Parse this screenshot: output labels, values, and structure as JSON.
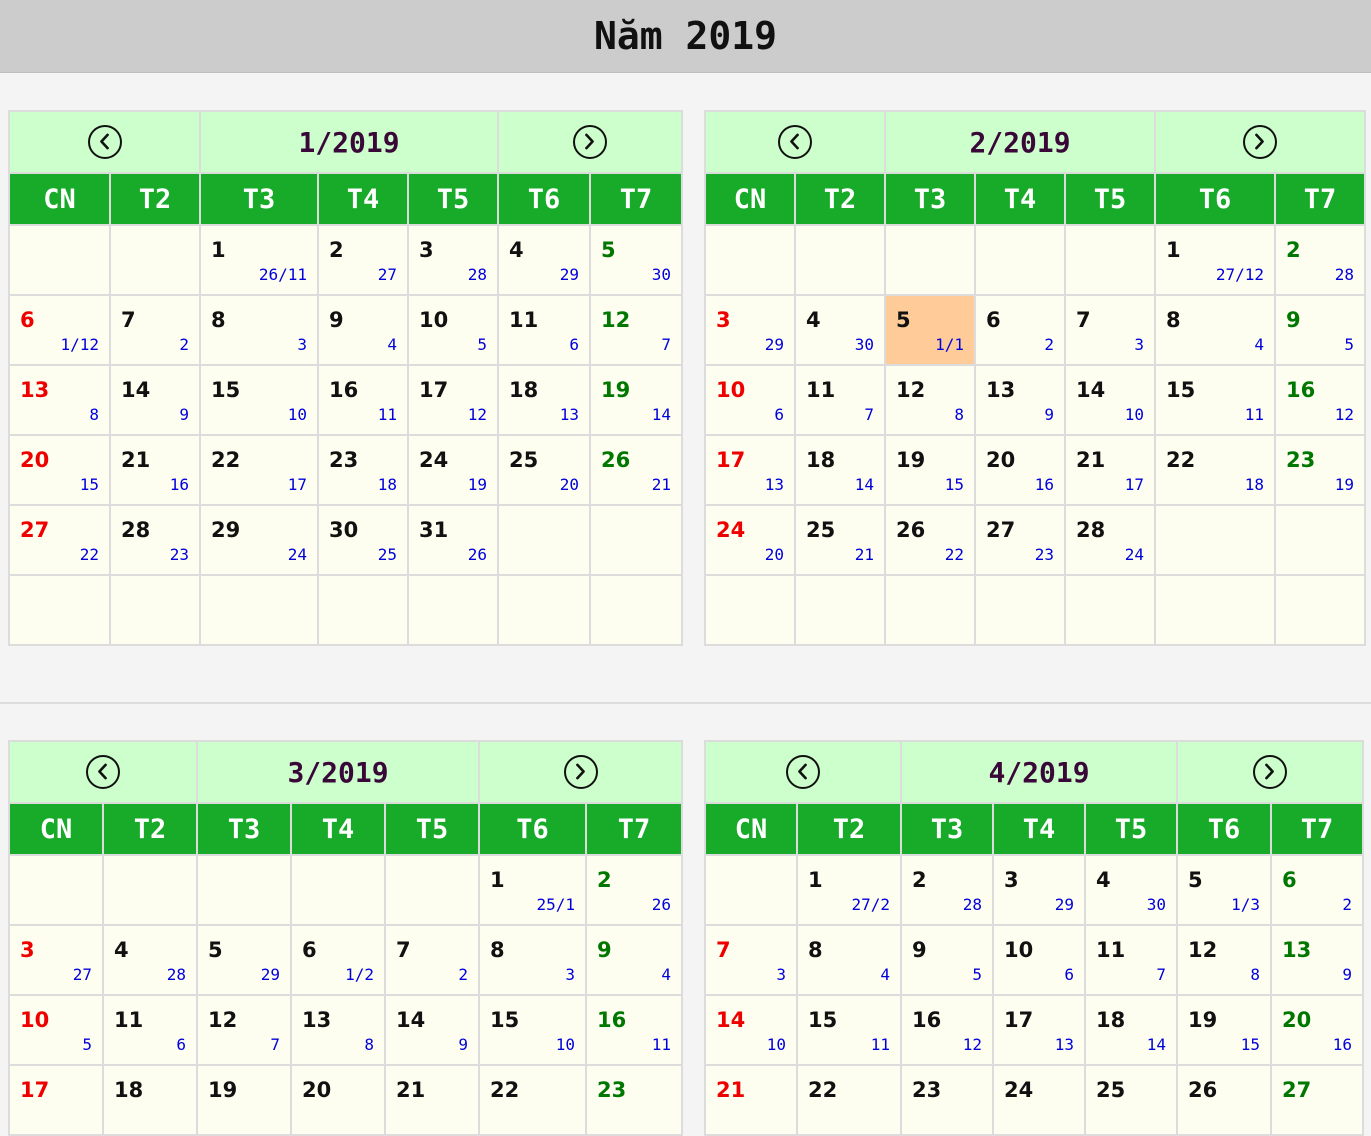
{
  "year_title": "Năm 2019",
  "colors": {
    "header_bar": "#cccccc",
    "nav_row": "#ccffcc",
    "weekday_header": "#17ab29",
    "cell_bg": "#fefef0",
    "today": "#ffcc99",
    "sunday_text": "#ee0000",
    "saturday_text": "#007700",
    "lunar_text": "#0000dd"
  },
  "icons": {
    "prev": "chevron-left-circle-icon",
    "next": "chevron-right-circle-icon"
  },
  "weekdays": [
    "CN",
    "T2",
    "T3",
    "T4",
    "T5",
    "T6",
    "T7"
  ],
  "months": [
    {
      "label": "1/2019",
      "weeks": [
        [
          null,
          null,
          [
            "1",
            "26/11"
          ],
          [
            "2",
            "27"
          ],
          [
            "3",
            "28"
          ],
          [
            "4",
            "29"
          ],
          [
            "5",
            "30"
          ]
        ],
        [
          [
            "6",
            "1/12"
          ],
          [
            "7",
            "2"
          ],
          [
            "8",
            "3"
          ],
          [
            "9",
            "4"
          ],
          [
            "10",
            "5"
          ],
          [
            "11",
            "6"
          ],
          [
            "12",
            "7"
          ]
        ],
        [
          [
            "13",
            "8"
          ],
          [
            "14",
            "9"
          ],
          [
            "15",
            "10"
          ],
          [
            "16",
            "11"
          ],
          [
            "17",
            "12"
          ],
          [
            "18",
            "13"
          ],
          [
            "19",
            "14"
          ]
        ],
        [
          [
            "20",
            "15"
          ],
          [
            "21",
            "16"
          ],
          [
            "22",
            "17"
          ],
          [
            "23",
            "18"
          ],
          [
            "24",
            "19"
          ],
          [
            "25",
            "20"
          ],
          [
            "26",
            "21"
          ]
        ],
        [
          [
            "27",
            "22"
          ],
          [
            "28",
            "23"
          ],
          [
            "29",
            "24"
          ],
          [
            "30",
            "25"
          ],
          [
            "31",
            "26"
          ],
          null,
          null
        ],
        [
          null,
          null,
          null,
          null,
          null,
          null,
          null
        ]
      ]
    },
    {
      "label": "2/2019",
      "highlight": "5",
      "weeks": [
        [
          null,
          null,
          null,
          null,
          null,
          [
            "1",
            "27/12"
          ],
          [
            "2",
            "28"
          ]
        ],
        [
          [
            "3",
            "29"
          ],
          [
            "4",
            "30"
          ],
          [
            "5",
            "1/1"
          ],
          [
            "6",
            "2"
          ],
          [
            "7",
            "3"
          ],
          [
            "8",
            "4"
          ],
          [
            "9",
            "5"
          ]
        ],
        [
          [
            "10",
            "6"
          ],
          [
            "11",
            "7"
          ],
          [
            "12",
            "8"
          ],
          [
            "13",
            "9"
          ],
          [
            "14",
            "10"
          ],
          [
            "15",
            "11"
          ],
          [
            "16",
            "12"
          ]
        ],
        [
          [
            "17",
            "13"
          ],
          [
            "18",
            "14"
          ],
          [
            "19",
            "15"
          ],
          [
            "20",
            "16"
          ],
          [
            "21",
            "17"
          ],
          [
            "22",
            "18"
          ],
          [
            "23",
            "19"
          ]
        ],
        [
          [
            "24",
            "20"
          ],
          [
            "25",
            "21"
          ],
          [
            "26",
            "22"
          ],
          [
            "27",
            "23"
          ],
          [
            "28",
            "24"
          ],
          null,
          null
        ],
        [
          null,
          null,
          null,
          null,
          null,
          null,
          null
        ]
      ]
    },
    {
      "label": "3/2019",
      "weeks": [
        [
          null,
          null,
          null,
          null,
          null,
          [
            "1",
            "25/1"
          ],
          [
            "2",
            "26"
          ]
        ],
        [
          [
            "3",
            "27"
          ],
          [
            "4",
            "28"
          ],
          [
            "5",
            "29"
          ],
          [
            "6",
            "1/2"
          ],
          [
            "7",
            "2"
          ],
          [
            "8",
            "3"
          ],
          [
            "9",
            "4"
          ]
        ],
        [
          [
            "10",
            "5"
          ],
          [
            "11",
            "6"
          ],
          [
            "12",
            "7"
          ],
          [
            "13",
            "8"
          ],
          [
            "14",
            "9"
          ],
          [
            "15",
            "10"
          ],
          [
            "16",
            "11"
          ]
        ],
        [
          [
            "17",
            ""
          ],
          [
            "18",
            ""
          ],
          [
            "19",
            ""
          ],
          [
            "20",
            ""
          ],
          [
            "21",
            ""
          ],
          [
            "22",
            ""
          ],
          [
            "23",
            ""
          ]
        ]
      ]
    },
    {
      "label": "4/2019",
      "weeks": [
        [
          null,
          [
            "1",
            "27/2"
          ],
          [
            "2",
            "28"
          ],
          [
            "3",
            "29"
          ],
          [
            "4",
            "30"
          ],
          [
            "5",
            "1/3"
          ],
          [
            "6",
            "2"
          ]
        ],
        [
          [
            "7",
            "3"
          ],
          [
            "8",
            "4"
          ],
          [
            "9",
            "5"
          ],
          [
            "10",
            "6"
          ],
          [
            "11",
            "7"
          ],
          [
            "12",
            "8"
          ],
          [
            "13",
            "9"
          ]
        ],
        [
          [
            "14",
            "10"
          ],
          [
            "15",
            "11"
          ],
          [
            "16",
            "12"
          ],
          [
            "17",
            "13"
          ],
          [
            "18",
            "14"
          ],
          [
            "19",
            "15"
          ],
          [
            "20",
            "16"
          ]
        ],
        [
          [
            "21",
            ""
          ],
          [
            "22",
            ""
          ],
          [
            "23",
            ""
          ],
          [
            "24",
            ""
          ],
          [
            "25",
            ""
          ],
          [
            "26",
            ""
          ],
          [
            "27",
            ""
          ]
        ]
      ]
    }
  ]
}
